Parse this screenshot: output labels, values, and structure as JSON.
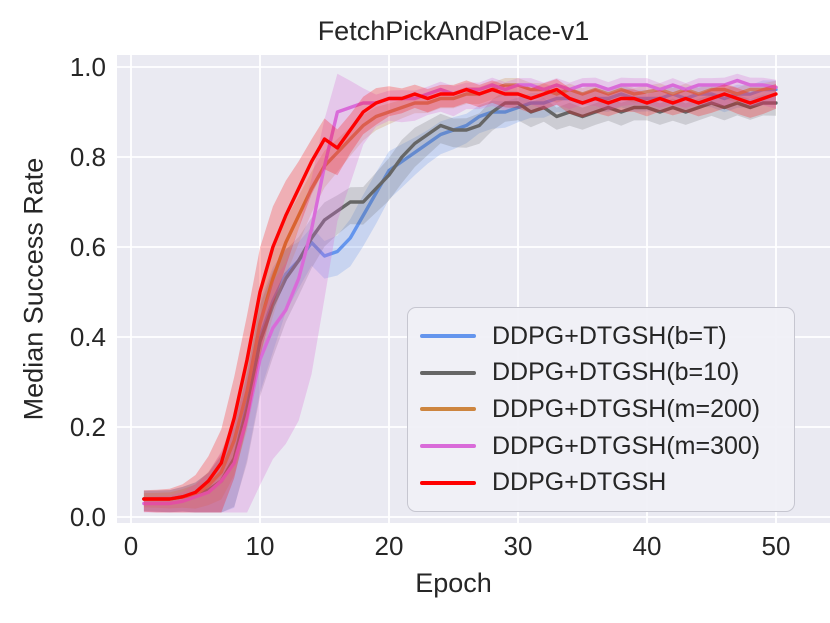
{
  "chart_data": {
    "type": "line",
    "title": "FetchPickAndPlace-v1",
    "xlabel": "Epoch",
    "ylabel": "Median Success Rate",
    "x_range": [
      0,
      50
    ],
    "y_range": [
      0.0,
      1.0
    ],
    "grid": true,
    "plot_background": "#EAEAF2",
    "gridline_color": "#FFFFFF",
    "legend_position": "lower right",
    "x_ticks": {
      "values": [
        0,
        10,
        20,
        30,
        40,
        50
      ],
      "labels": [
        "0",
        "10",
        "20",
        "30",
        "40",
        "50"
      ]
    },
    "y_ticks": {
      "values": [
        0.0,
        0.2,
        0.4,
        0.6,
        0.8,
        1.0
      ],
      "labels": [
        "0.0",
        "0.2",
        "0.4",
        "0.6",
        "0.8",
        "1.0"
      ]
    },
    "x": [
      1,
      2,
      3,
      4,
      5,
      6,
      7,
      8,
      9,
      10,
      11,
      12,
      13,
      14,
      15,
      16,
      17,
      18,
      19,
      20,
      21,
      22,
      23,
      24,
      25,
      26,
      27,
      28,
      29,
      30,
      31,
      32,
      33,
      34,
      35,
      36,
      37,
      38,
      39,
      40,
      41,
      42,
      43,
      44,
      45,
      46,
      47,
      48,
      49,
      50
    ],
    "series": [
      {
        "name": "DDPG+DTGSH(b=T)",
        "color": "#6495ED",
        "band": {
          "base": 0.022,
          "k": 0.9,
          "low": 1.2,
          "up": 0.8,
          "opacity": 0.25
        },
        "values": [
          0.04,
          0.04,
          0.04,
          0.045,
          0.05,
          0.06,
          0.08,
          0.13,
          0.25,
          0.4,
          0.48,
          0.54,
          0.57,
          0.61,
          0.58,
          0.59,
          0.62,
          0.67,
          0.72,
          0.77,
          0.79,
          0.81,
          0.83,
          0.85,
          0.86,
          0.87,
          0.89,
          0.9,
          0.9,
          0.91,
          0.92,
          0.92,
          0.93,
          0.93,
          0.92,
          0.93,
          0.93,
          0.94,
          0.93,
          0.93,
          0.93,
          0.94,
          0.93,
          0.94,
          0.94,
          0.93,
          0.94,
          0.94,
          0.95,
          0.95
        ]
      },
      {
        "name": "DDPG+DTGSH(b=10)",
        "color": "#666666",
        "band": {
          "base": 0.022,
          "k": 0.9,
          "low": 1.2,
          "up": 0.8,
          "opacity": 0.22
        },
        "values": [
          0.04,
          0.04,
          0.04,
          0.045,
          0.05,
          0.06,
          0.08,
          0.13,
          0.24,
          0.39,
          0.47,
          0.53,
          0.57,
          0.62,
          0.66,
          0.68,
          0.7,
          0.7,
          0.73,
          0.76,
          0.8,
          0.83,
          0.85,
          0.87,
          0.86,
          0.86,
          0.87,
          0.9,
          0.92,
          0.92,
          0.9,
          0.91,
          0.89,
          0.9,
          0.89,
          0.9,
          0.91,
          0.9,
          0.91,
          0.91,
          0.9,
          0.91,
          0.9,
          0.91,
          0.92,
          0.91,
          0.92,
          0.91,
          0.92,
          0.92
        ]
      },
      {
        "name": "DDPG+DTGSH(m=200)",
        "color": "#CD853F",
        "band": {
          "base": 0.018,
          "k": 0.7,
          "low": 1.0,
          "up": 0.7,
          "opacity": 0.25
        },
        "values": [
          0.04,
          0.04,
          0.04,
          0.045,
          0.05,
          0.07,
          0.1,
          0.17,
          0.28,
          0.43,
          0.53,
          0.61,
          0.67,
          0.73,
          0.78,
          0.81,
          0.84,
          0.87,
          0.89,
          0.9,
          0.91,
          0.92,
          0.92,
          0.93,
          0.93,
          0.94,
          0.94,
          0.95,
          0.96,
          0.96,
          0.95,
          0.95,
          0.94,
          0.95,
          0.94,
          0.95,
          0.94,
          0.95,
          0.94,
          0.945,
          0.95,
          0.94,
          0.95,
          0.94,
          0.95,
          0.95,
          0.94,
          0.95,
          0.95,
          0.955
        ]
      },
      {
        "name": "DDPG+DTGSH(m=300)",
        "color": "#D96BD9",
        "band": {
          "base": 0.022,
          "k": 1.8,
          "low": 1.7,
          "up": 0.6,
          "opacity": 0.28
        },
        "values": [
          0.03,
          0.03,
          0.03,
          0.035,
          0.045,
          0.055,
          0.08,
          0.12,
          0.22,
          0.35,
          0.42,
          0.46,
          0.53,
          0.64,
          0.78,
          0.9,
          0.91,
          0.92,
          0.92,
          0.93,
          0.93,
          0.93,
          0.94,
          0.95,
          0.94,
          0.95,
          0.95,
          0.96,
          0.95,
          0.96,
          0.96,
          0.95,
          0.96,
          0.95,
          0.96,
          0.96,
          0.95,
          0.96,
          0.96,
          0.96,
          0.95,
          0.96,
          0.95,
          0.96,
          0.96,
          0.96,
          0.97,
          0.96,
          0.96,
          0.955
        ]
      },
      {
        "name": "DDPG+DTGSH",
        "color": "#FF0000",
        "band": {
          "base": 0.025,
          "k": 1.0,
          "low": 1.1,
          "up": 0.75,
          "opacity": 0.25
        },
        "values": [
          0.04,
          0.04,
          0.04,
          0.045,
          0.055,
          0.08,
          0.12,
          0.22,
          0.35,
          0.5,
          0.6,
          0.67,
          0.73,
          0.79,
          0.84,
          0.82,
          0.86,
          0.9,
          0.92,
          0.93,
          0.93,
          0.94,
          0.93,
          0.94,
          0.94,
          0.95,
          0.94,
          0.95,
          0.94,
          0.94,
          0.93,
          0.94,
          0.95,
          0.93,
          0.92,
          0.93,
          0.92,
          0.93,
          0.93,
          0.92,
          0.93,
          0.92,
          0.93,
          0.92,
          0.93,
          0.94,
          0.93,
          0.92,
          0.93,
          0.94
        ]
      }
    ]
  }
}
